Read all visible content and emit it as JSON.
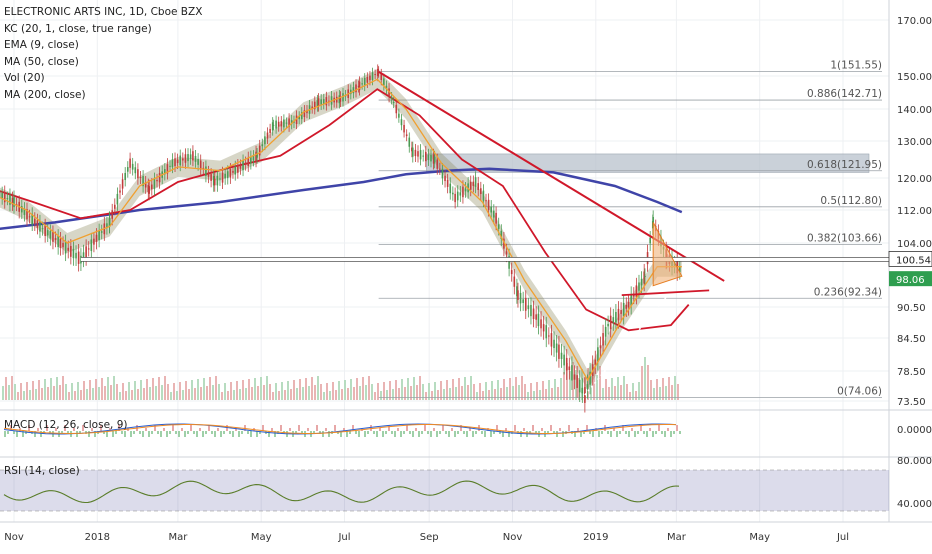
{
  "chart_data": {
    "type": "line",
    "title": "ELECTRONIC ARTS INC, 1D, Cboe BZX",
    "indicators": [
      "KC (20, 1, close, true range)",
      "EMA (9, close)",
      "MA (50, close)",
      "Vol (20)",
      "MA (200, close)"
    ],
    "x_ticks": [
      "Nov",
      "2018",
      "Mar",
      "May",
      "Jul",
      "Sep",
      "Nov",
      "2019",
      "Mar",
      "May",
      "Jul"
    ],
    "y_ticks": [
      "170.00",
      "150.00",
      "140.00",
      "130.00",
      "120.00",
      "112.00",
      "104.00",
      "90.50",
      "84.50",
      "78.50",
      "73.50"
    ],
    "price_label_white": "100.54",
    "last_price": "98.06",
    "fib_levels": [
      {
        "label": "1(151.55)",
        "value": 151.55
      },
      {
        "label": "0.886(142.71)",
        "value": 142.71
      },
      {
        "label": "0.618(121.95)",
        "value": 121.95
      },
      {
        "label": "0.5(112.80)",
        "value": 112.8
      },
      {
        "label": "0.382(103.66)",
        "value": 103.66
      },
      {
        "label": "0.236(92.34)",
        "value": 92.34
      },
      {
        "label": "0(74.06)",
        "value": 74.06
      }
    ],
    "price_series": {
      "name": "close",
      "x": [
        "2017-10-10",
        "2017-11-01",
        "2017-11-20",
        "2017-12-05",
        "2017-12-20",
        "2018-01-10",
        "2018-01-25",
        "2018-02-08",
        "2018-02-25",
        "2018-03-12",
        "2018-03-28",
        "2018-04-12",
        "2018-04-28",
        "2018-05-10",
        "2018-05-25",
        "2018-06-12",
        "2018-06-28",
        "2018-07-12",
        "2018-07-26",
        "2018-08-06",
        "2018-08-20",
        "2018-09-05",
        "2018-09-20",
        "2018-10-05",
        "2018-10-20",
        "2018-11-05",
        "2018-11-20",
        "2018-12-05",
        "2018-12-24",
        "2019-01-10",
        "2019-01-25",
        "2019-02-06",
        "2019-02-12",
        "2019-02-22",
        "2019-03-05"
      ],
      "y": [
        118,
        114,
        108,
        104,
        100.5,
        109,
        124,
        117,
        124,
        126,
        119,
        122,
        126,
        135,
        136,
        142,
        143,
        147,
        151.5,
        142,
        127,
        125,
        115,
        119,
        110,
        93,
        88,
        82,
        74.5,
        87,
        91,
        97,
        109,
        101,
        98
      ]
    },
    "ema9": {
      "name": "EMA (9, close)",
      "x": [
        "2017-10-10",
        "2017-11-10",
        "2017-12-10",
        "2018-01-10",
        "2018-02-01",
        "2018-03-01",
        "2018-04-01",
        "2018-05-01",
        "2018-06-01",
        "2018-07-01",
        "2018-07-25",
        "2018-08-15",
        "2018-09-10",
        "2018-10-10",
        "2018-11-10",
        "2018-12-10",
        "2018-12-26",
        "2019-01-20",
        "2019-02-15",
        "2019-03-05"
      ],
      "y": [
        117,
        112,
        104,
        108,
        118,
        123,
        122,
        127,
        139,
        144,
        149,
        140,
        124,
        114,
        96,
        84,
        77,
        88,
        99,
        99
      ]
    },
    "ma50": {
      "name": "MA (50, close)",
      "x": [
        "2017-10-10",
        "2017-11-15",
        "2017-12-20",
        "2018-01-25",
        "2018-03-01",
        "2018-04-10",
        "2018-05-15",
        "2018-06-20",
        "2018-07-25",
        "2018-08-25",
        "2018-09-25",
        "2018-10-25",
        "2018-11-25",
        "2018-12-25",
        "2019-01-25",
        "2019-02-25",
        "2019-03-10"
      ],
      "y": [
        118,
        114,
        110,
        112,
        119,
        123,
        126,
        135,
        146,
        138,
        125,
        118,
        102,
        90,
        86,
        87,
        91
      ]
    },
    "ma200": {
      "name": "MA (200, close)",
      "x": [
        "2017-10-10",
        "2017-12-01",
        "2018-02-01",
        "2018-04-01",
        "2018-06-01",
        "2018-07-15",
        "2018-08-15",
        "2018-09-15",
        "2018-10-15",
        "2018-12-01",
        "2019-01-15",
        "2019-02-15",
        "2019-03-05"
      ],
      "y": [
        107,
        109,
        112,
        114,
        117,
        119,
        121,
        122,
        122.5,
        121.5,
        118,
        114,
        111.5
      ]
    },
    "trendlines": [
      {
        "type": "descending-resistance",
        "from": {
          "x": "2018-07-26",
          "y": 151.5
        },
        "to": {
          "x": "2019-04-05",
          "y": 96
        }
      },
      {
        "type": "horizontal-support",
        "from": {
          "x": "2017-12-20",
          "y": 100.54
        },
        "to": {
          "x": "2019-07-31",
          "y": 100.54
        }
      },
      {
        "type": "ascending-support-dotted",
        "from": {
          "x": "2018-12-24",
          "y": 74.5
        },
        "to": {
          "x": "2019-03-12",
          "y": 99
        }
      }
    ],
    "zones": [
      {
        "from": "2018-08-30",
        "to": "2019-07-31",
        "y1": 121.5,
        "y2": 126.5
      }
    ],
    "macd_pane": {
      "label": "MACD (12, 26, close, 9)",
      "y_ticks": [
        "0.0000"
      ]
    },
    "rsi_pane": {
      "label": "RSI (14, close)",
      "y_ticks": [
        "80.0000",
        "40.0000"
      ]
    }
  }
}
